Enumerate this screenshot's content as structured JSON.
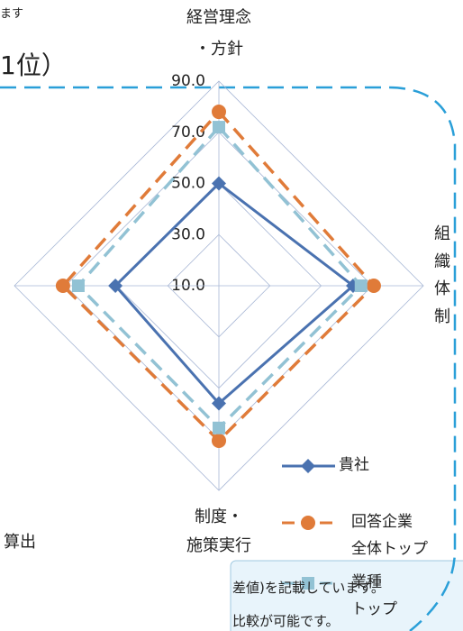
{
  "chart_data": {
    "type": "radar",
    "categories": [
      "経営理念\n・方針",
      "組織体制",
      "制度・\n施策実行",
      null
    ],
    "rlim": [
      10,
      90
    ],
    "rticks": [
      {
        "value": 90,
        "label": "90.0"
      },
      {
        "value": 70,
        "label": "70.0"
      },
      {
        "value": 50,
        "label": "50.0"
      },
      {
        "value": 30,
        "label": "30.0"
      },
      {
        "value": 10,
        "label": "10.0"
      }
    ],
    "grid": true,
    "series": [
      {
        "name": "貴社",
        "color": "#4a72b0",
        "marker": "diamond",
        "dash": "solid",
        "values": [
          50,
          62.5,
          56,
          50.5
        ]
      },
      {
        "name": "回答企業\n全体トップ",
        "color": "#e07b39",
        "marker": "circle",
        "dash": "dashed",
        "values": [
          78,
          70.6,
          70.6,
          71
        ]
      },
      {
        "name": "業種\nトップ",
        "color": "#92c2d4",
        "marker": "square",
        "dash": "dashed",
        "values": [
          72,
          65.6,
          65.6,
          65
        ]
      }
    ]
  },
  "fragments": {
    "top_note": "ます",
    "rank": "1位）",
    "calc": "算出",
    "callout_1": "差値)を記載しています。",
    "callout_2": "比較が可能です。"
  }
}
